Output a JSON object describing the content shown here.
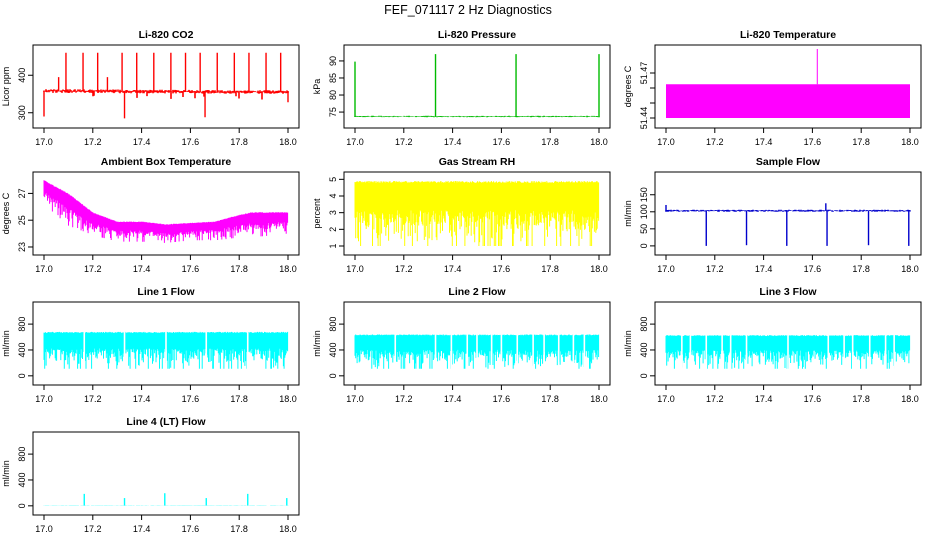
{
  "figure": {
    "title": "FEF_071117  2 Hz Diagnostics"
  },
  "chart_data": [
    {
      "type": "line",
      "title": "Li-820 CO2",
      "ylabel": "Licor ppm",
      "color": "#ff0000",
      "xlim": [
        17.0,
        18.0
      ],
      "ylim": [
        270,
        470
      ],
      "xticks": [
        17.0,
        17.2,
        17.4,
        17.6,
        17.8,
        18.0
      ],
      "xtick_labels": [
        "17.0",
        "17.2",
        "17.4",
        "17.6",
        "17.8",
        "18.0"
      ],
      "yticks": [
        300,
        400
      ],
      "ytick_labels": [
        "300",
        "400"
      ],
      "baseline": {
        "x": [
          17.0,
          18.0
        ],
        "y": [
          358,
          355
        ]
      },
      "noise": 10,
      "dropout_depth": 20,
      "spikes": [
        {
          "x": 17.0,
          "y": 290
        },
        {
          "x": 17.06,
          "y": 395
        },
        {
          "x": 17.09,
          "y": 460
        },
        {
          "x": 17.16,
          "y": 460
        },
        {
          "x": 17.22,
          "y": 460
        },
        {
          "x": 17.26,
          "y": 395
        },
        {
          "x": 17.32,
          "y": 460
        },
        {
          "x": 17.33,
          "y": 285
        },
        {
          "x": 17.38,
          "y": 460
        },
        {
          "x": 17.45,
          "y": 460
        },
        {
          "x": 17.52,
          "y": 460
        },
        {
          "x": 17.58,
          "y": 460
        },
        {
          "x": 17.64,
          "y": 460
        },
        {
          "x": 17.66,
          "y": 288
        },
        {
          "x": 17.71,
          "y": 460
        },
        {
          "x": 17.78,
          "y": 460
        },
        {
          "x": 17.84,
          "y": 460
        },
        {
          "x": 17.91,
          "y": 460
        },
        {
          "x": 17.97,
          "y": 460
        },
        {
          "x": 18.0,
          "y": 328
        }
      ]
    },
    {
      "type": "line",
      "title": "Li-820 Pressure",
      "ylabel": "kPa",
      "color": "#00bb00",
      "xlim": [
        17.0,
        18.0
      ],
      "ylim": [
        71.5,
        93.5
      ],
      "xticks": [
        17.0,
        17.2,
        17.4,
        17.6,
        17.8,
        18.0
      ],
      "xtick_labels": [
        "17.0",
        "17.2",
        "17.4",
        "17.6",
        "17.8",
        "18.0"
      ],
      "yticks": [
        75,
        80,
        85,
        90
      ],
      "ytick_labels": [
        "75",
        "80",
        "85",
        "90"
      ],
      "baseline": {
        "x": [
          17.0,
          18.0
        ],
        "y": [
          73.7,
          73.7
        ]
      },
      "noise": 0.4,
      "dropout_depth": 0,
      "spikes": [
        {
          "x": 17.0,
          "y": 89.8
        },
        {
          "x": 17.33,
          "y": 92.0
        },
        {
          "x": 17.66,
          "y": 92.0
        },
        {
          "x": 18.0,
          "y": 92.0
        }
      ]
    },
    {
      "type": "area",
      "title": "Li-820 Temperature",
      "ylabel": "degrees C",
      "color": "#ff00ff",
      "xlim": [
        17.0,
        18.0
      ],
      "ylim": [
        51.436,
        51.486
      ],
      "xticks": [
        17.0,
        17.2,
        17.4,
        17.6,
        17.8,
        18.0
      ],
      "xtick_labels": [
        "17.0",
        "17.2",
        "17.4",
        "17.6",
        "17.8",
        "18.0"
      ],
      "yticks": [
        51.44,
        51.45,
        51.46,
        51.47
      ],
      "ytick_labels": [
        "51.44",
        "",
        "",
        "51.47"
      ],
      "band": {
        "x": [
          17.0,
          18.0
        ],
        "low": 51.44,
        "high": 51.4625
      },
      "spikes": [
        {
          "x": 17.62,
          "y": 51.486
        }
      ]
    },
    {
      "type": "area",
      "title": "Ambient Box Temperature",
      "ylabel": "degrees C",
      "color": "#ff00ff",
      "xlim": [
        17.0,
        18.0
      ],
      "ylim": [
        22.7,
        28.3
      ],
      "xticks": [
        17.0,
        17.2,
        17.4,
        17.6,
        17.8,
        18.0
      ],
      "xtick_labels": [
        "17.0",
        "17.2",
        "17.4",
        "17.6",
        "17.8",
        "18.0"
      ],
      "yticks": [
        23,
        25,
        27
      ],
      "ytick_labels": [
        "23",
        "25",
        "27"
      ],
      "upper": {
        "x": [
          17.0,
          17.1,
          17.2,
          17.3,
          17.4,
          17.5,
          17.6,
          17.7,
          17.8,
          17.85,
          18.0
        ],
        "y": [
          28.0,
          27.0,
          25.6,
          24.9,
          24.9,
          24.7,
          24.8,
          24.9,
          25.4,
          25.6,
          25.6
        ]
      },
      "lower": {
        "x": [
          17.0,
          17.1,
          17.2,
          17.3,
          17.4,
          17.5,
          17.6,
          17.7,
          17.8,
          17.9,
          18.0
        ],
        "y": [
          26.2,
          24.6,
          23.9,
          23.4,
          23.4,
          23.3,
          23.5,
          23.5,
          23.7,
          23.8,
          24.0
        ]
      }
    },
    {
      "type": "area",
      "title": "Gas Stream RH",
      "ylabel": "percent",
      "color": "#ffff00",
      "xlim": [
        17.0,
        18.0
      ],
      "ylim": [
        0.7,
        5.2
      ],
      "xticks": [
        17.0,
        17.2,
        17.4,
        17.6,
        17.8,
        18.0
      ],
      "xtick_labels": [
        "17.0",
        "17.2",
        "17.4",
        "17.6",
        "17.8",
        "18.0"
      ],
      "yticks": [
        1,
        2,
        3,
        4,
        5
      ],
      "ytick_labels": [
        "1",
        "2",
        "3",
        "4",
        "5"
      ],
      "upper": {
        "x": [
          17.0,
          18.0
        ],
        "y": [
          4.9,
          4.9
        ]
      },
      "lower": {
        "x": [
          17.0,
          18.0
        ],
        "y": [
          1.0,
          1.0
        ]
      }
    },
    {
      "type": "line",
      "title": "Sample Flow",
      "ylabel": "ml/min",
      "color": "#0000cc",
      "xlim": [
        17.0,
        18.0
      ],
      "ylim": [
        -15,
        205
      ],
      "xticks": [
        17.0,
        17.2,
        17.4,
        17.6,
        17.8,
        18.0
      ],
      "xtick_labels": [
        "17.0",
        "17.2",
        "17.4",
        "17.6",
        "17.8",
        "18.0"
      ],
      "yticks": [
        0,
        50,
        100,
        150
      ],
      "ytick_labels": [
        "0",
        "50",
        "100",
        "150"
      ],
      "baseline": {
        "x": [
          17.0,
          18.0
        ],
        "y": [
          103,
          103
        ]
      },
      "noise": 6,
      "dropout_depth": 0,
      "spikes": [
        {
          "x": 17.0,
          "y": 120
        },
        {
          "x": 17.165,
          "y": 0
        },
        {
          "x": 17.33,
          "y": 2
        },
        {
          "x": 17.495,
          "y": 0
        },
        {
          "x": 17.66,
          "y": 0
        },
        {
          "x": 17.655,
          "y": 125
        },
        {
          "x": 17.83,
          "y": 2
        },
        {
          "x": 17.995,
          "y": 0
        }
      ]
    },
    {
      "type": "area",
      "title": "Line 1 Flow",
      "ylabel": "ml/min",
      "color": "#00ffff",
      "xlim": [
        17.0,
        18.0
      ],
      "ylim": [
        -80,
        1080
      ],
      "xticks": [
        17.0,
        17.2,
        17.4,
        17.6,
        17.8,
        18.0
      ],
      "xtick_labels": [
        "17.0",
        "17.2",
        "17.4",
        "17.6",
        "17.8",
        "18.0"
      ],
      "yticks": [
        0,
        400,
        800
      ],
      "ytick_labels": [
        "0",
        "400",
        "800"
      ],
      "upper": {
        "x": [
          17.0,
          18.0
        ],
        "y": [
          680,
          680
        ]
      },
      "lower": {
        "x": [
          17.0,
          18.0
        ],
        "y": [
          110,
          110
        ]
      },
      "gaps": [
        17.165,
        17.33,
        17.5,
        17.665,
        17.835
      ]
    },
    {
      "type": "area",
      "title": "Line 2 Flow",
      "ylabel": "ml/min",
      "color": "#00ffff",
      "xlim": [
        17.0,
        18.0
      ],
      "ylim": [
        -80,
        1080
      ],
      "xticks": [
        17.0,
        17.2,
        17.4,
        17.6,
        17.8,
        18.0
      ],
      "xtick_labels": [
        "17.0",
        "17.2",
        "17.4",
        "17.6",
        "17.8",
        "18.0"
      ],
      "yticks": [
        0,
        400,
        800
      ],
      "ytick_labels": [
        "0",
        "400",
        "800"
      ],
      "upper": {
        "x": [
          17.0,
          18.0
        ],
        "y": [
          640,
          640
        ]
      },
      "lower": {
        "x": [
          17.0,
          18.0
        ],
        "y": [
          110,
          110
        ]
      },
      "gaps": [
        17.165,
        17.33,
        17.395,
        17.46,
        17.5,
        17.56,
        17.6,
        17.665,
        17.73,
        17.775,
        17.835,
        17.895,
        17.94
      ]
    },
    {
      "type": "area",
      "title": "Line 3 Flow",
      "ylabel": "ml/min",
      "color": "#00ffff",
      "xlim": [
        17.0,
        18.0
      ],
      "ylim": [
        -80,
        1080
      ],
      "xticks": [
        17.0,
        17.2,
        17.4,
        17.6,
        17.8,
        18.0
      ],
      "xtick_labels": [
        "17.0",
        "17.2",
        "17.4",
        "17.6",
        "17.8",
        "18.0"
      ],
      "yticks": [
        0,
        400,
        800
      ],
      "ytick_labels": [
        "0",
        "400",
        "800"
      ],
      "upper": {
        "x": [
          17.0,
          18.0
        ],
        "y": [
          630,
          630
        ]
      },
      "lower": {
        "x": [
          17.0,
          18.0
        ],
        "y": [
          110,
          110
        ]
      },
      "gaps": [
        17.065,
        17.1,
        17.165,
        17.23,
        17.265,
        17.33,
        17.5,
        17.665,
        17.73,
        17.765,
        17.835,
        17.9,
        17.935
      ]
    },
    {
      "type": "line",
      "title": "Line 4 (LT) Flow",
      "ylabel": "ml/min",
      "color": "#00ffff",
      "xlim": [
        17.0,
        18.0
      ],
      "ylim": [
        -80,
        1080
      ],
      "xticks": [
        17.0,
        17.2,
        17.4,
        17.6,
        17.8,
        18.0
      ],
      "xtick_labels": [
        "17.0",
        "17.2",
        "17.4",
        "17.6",
        "17.8",
        "18.0"
      ],
      "yticks": [
        0,
        400,
        800
      ],
      "ytick_labels": [
        "0",
        "400",
        "800"
      ],
      "baseline": {
        "x": [
          17.0,
          18.0
        ],
        "y": [
          5,
          5
        ]
      },
      "noise": 4,
      "dropout_depth": 0,
      "spikes": [
        {
          "x": 17.165,
          "y": 185
        },
        {
          "x": 17.33,
          "y": 120
        },
        {
          "x": 17.495,
          "y": 195
        },
        {
          "x": 17.665,
          "y": 120
        },
        {
          "x": 17.835,
          "y": 185
        },
        {
          "x": 17.995,
          "y": 120
        }
      ]
    }
  ]
}
